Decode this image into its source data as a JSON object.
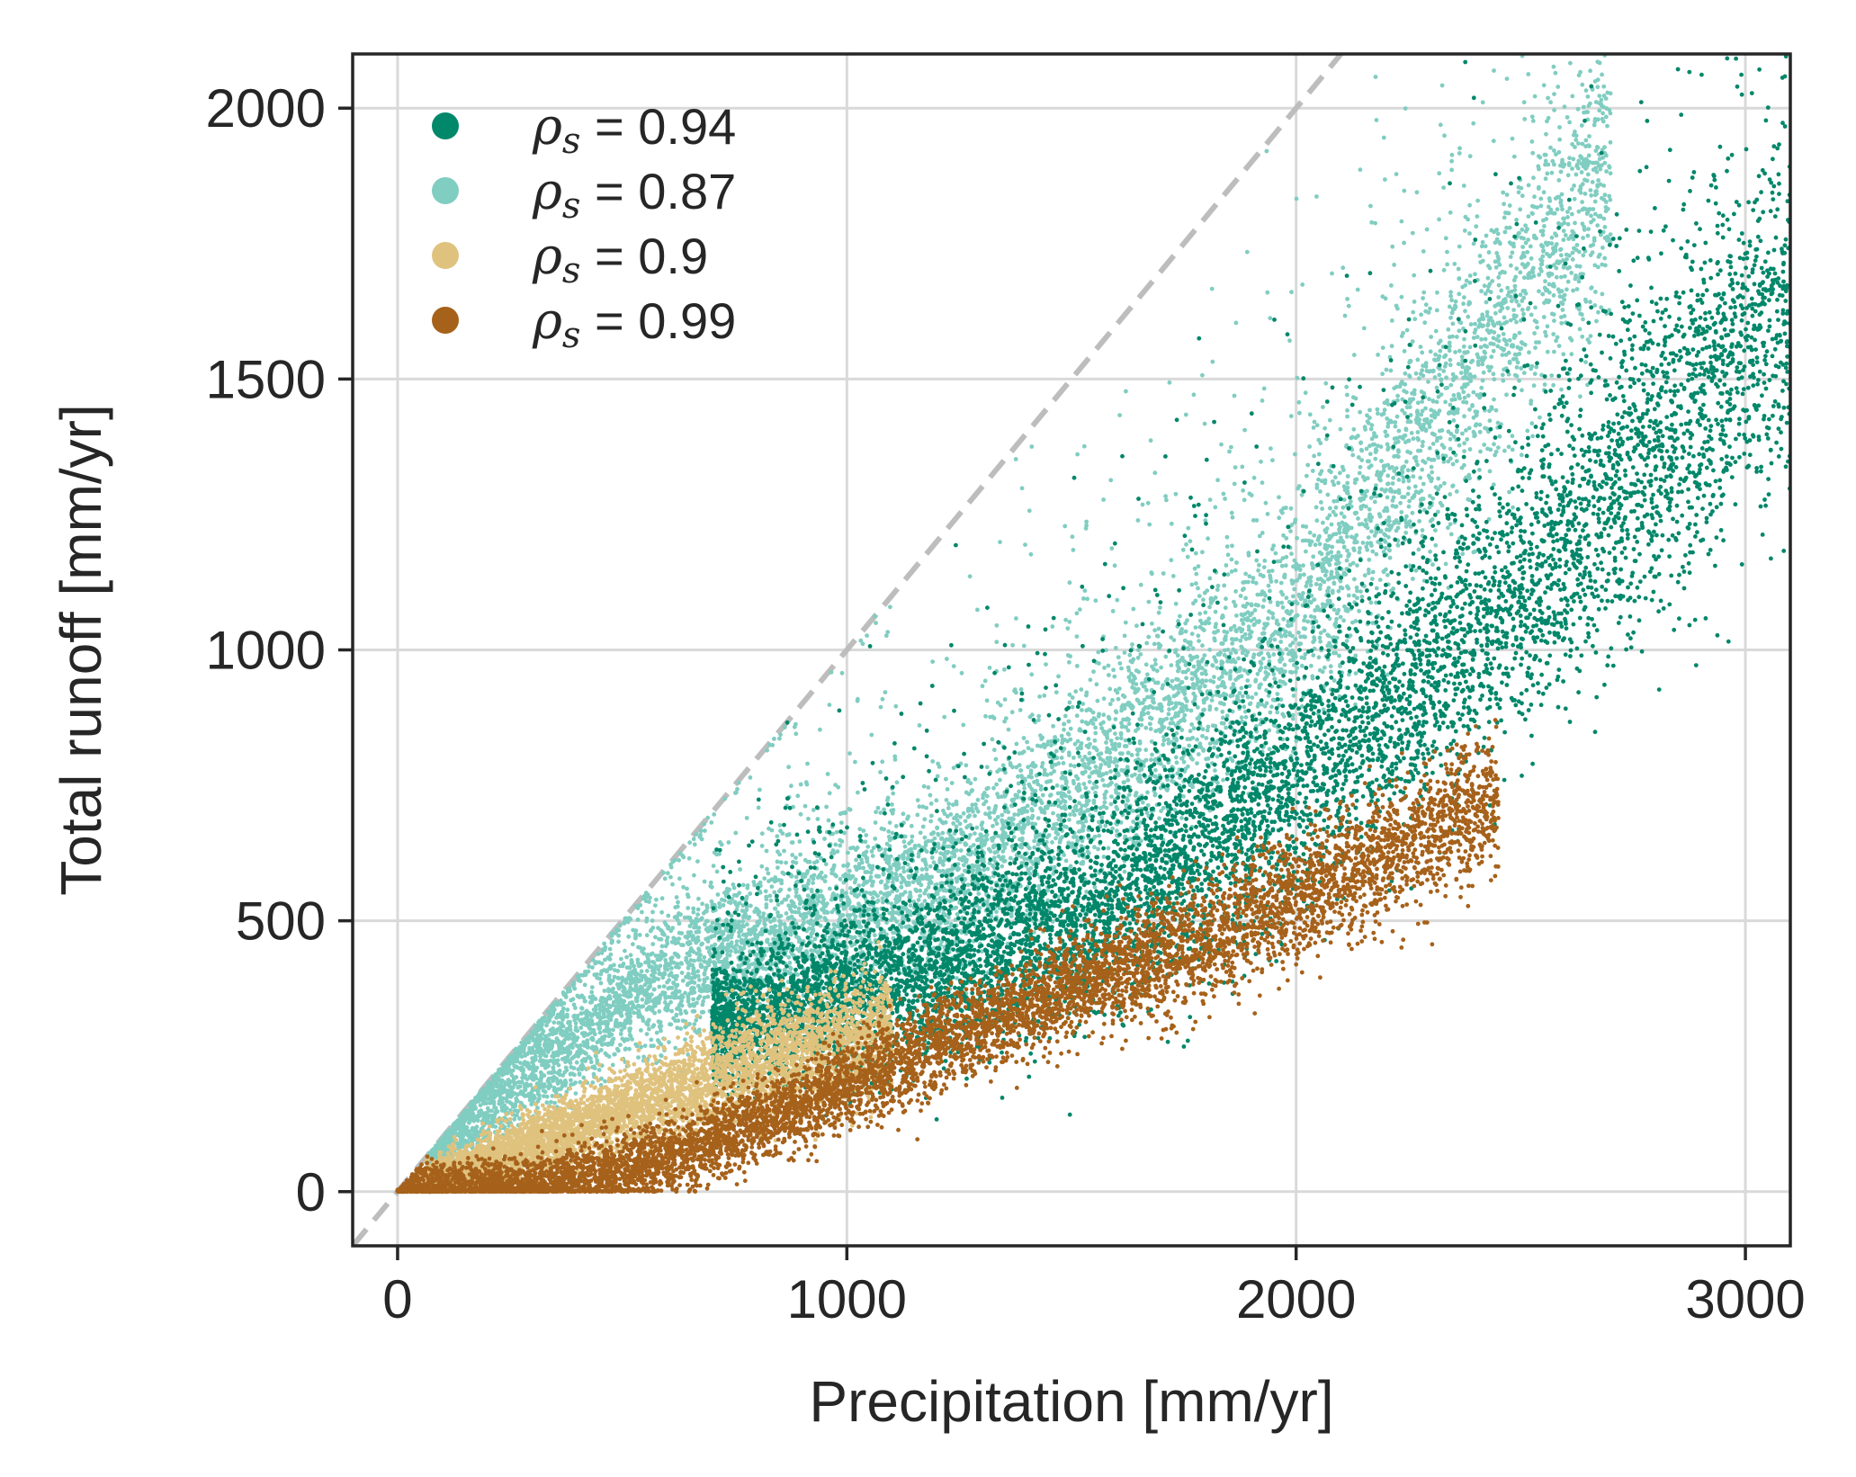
{
  "chart_data": {
    "type": "scatter",
    "title": "",
    "xlabel": "Precipitation [mm/yr]",
    "ylabel": "Total runoff [mm/yr]",
    "xlim": [
      -100,
      3100
    ],
    "ylim": [
      -100,
      2100
    ],
    "xticks": [
      0,
      1000,
      2000,
      3000
    ],
    "yticks": [
      0,
      500,
      1000,
      1500,
      2000
    ],
    "xtick_labels": [
      "0",
      "1000",
      "2000",
      "3000"
    ],
    "ytick_labels": [
      "0",
      "500",
      "1000",
      "1500",
      "2000"
    ],
    "grid": true,
    "legend_position": "top-left",
    "reference_line": {
      "style": "dashed",
      "color": "#bdbdbd",
      "description": "1:1 line",
      "points": [
        [
          -100,
          -100
        ],
        [
          2100,
          2100
        ]
      ]
    },
    "series": [
      {
        "name": "ρs = 0.94",
        "legend_rho": "ρ",
        "legend_sub": "s",
        "legend_value": " = 0.94",
        "color": "#01876a",
        "n_points": 9000,
        "x_range": [
          700,
          3100
        ],
        "trend": [
          [
            700,
            300
          ],
          [
            1000,
            360
          ],
          [
            1500,
            490
          ],
          [
            2000,
            750
          ],
          [
            2500,
            1100
          ],
          [
            3000,
            1550
          ],
          [
            3100,
            1620
          ]
        ],
        "spread_y": 110,
        "outliers": true
      },
      {
        "name": "ρs = 0.87",
        "legend_rho": "ρ",
        "legend_sub": "s",
        "legend_value": " = 0.87",
        "color": "#80cdc1",
        "n_points": 9000,
        "x_range": [
          70,
          2700
        ],
        "trend": [
          [
            70,
            60
          ],
          [
            300,
            230
          ],
          [
            600,
            400
          ],
          [
            900,
            480
          ],
          [
            1200,
            560
          ],
          [
            1500,
            720
          ],
          [
            2000,
            1050
          ],
          [
            2700,
            1900
          ]
        ],
        "spread_y": 90,
        "outliers": true
      },
      {
        "name": "ρs = 0.9",
        "legend_rho": "ρ",
        "legend_sub": "s",
        "legend_value": " = 0.9",
        "color": "#dfc27d",
        "n_points": 5000,
        "x_range": [
          60,
          1100
        ],
        "trend": [
          [
            60,
            10
          ],
          [
            300,
            90
          ],
          [
            600,
            180
          ],
          [
            900,
            260
          ],
          [
            1100,
            300
          ]
        ],
        "spread_y": 40,
        "outliers": false
      },
      {
        "name": "ρs = 0.99",
        "legend_rho": "ρ",
        "legend_sub": "s",
        "legend_value": " = 0.99",
        "color": "#a6611a",
        "n_points": 8000,
        "x_range": [
          0,
          2450
        ],
        "trend": [
          [
            0,
            0
          ],
          [
            300,
            5
          ],
          [
            600,
            60
          ],
          [
            900,
            160
          ],
          [
            1200,
            270
          ],
          [
            1500,
            380
          ],
          [
            1800,
            470
          ],
          [
            2100,
            580
          ],
          [
            2450,
            730
          ]
        ],
        "spread_y": 45,
        "outliers": false
      }
    ]
  }
}
